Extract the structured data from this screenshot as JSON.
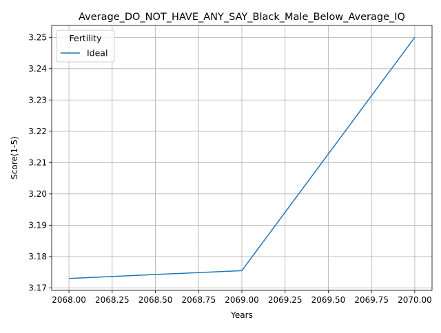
{
  "chart_data": {
    "type": "line",
    "title": "Average_DO_NOT_HAVE_ANY_SAY_Black_Male_Below_Average_IQ",
    "xlabel": "Years",
    "ylabel": "Score(1-5)",
    "xlim": [
      2067.9,
      2070.1
    ],
    "ylim": [
      3.1692,
      3.2538
    ],
    "x_ticks": [
      2068.0,
      2068.25,
      2068.5,
      2068.75,
      2069.0,
      2069.25,
      2069.5,
      2069.75,
      2070.0
    ],
    "x_tick_labels": [
      "2068.00",
      "2068.25",
      "2068.50",
      "2068.75",
      "2069.00",
      "2069.25",
      "2069.50",
      "2069.75",
      "2070.00"
    ],
    "y_ticks": [
      3.17,
      3.18,
      3.19,
      3.2,
      3.21,
      3.22,
      3.23,
      3.24,
      3.25
    ],
    "y_tick_labels": [
      "3.17",
      "3.18",
      "3.19",
      "3.20",
      "3.21",
      "3.22",
      "3.23",
      "3.24",
      "3.25"
    ],
    "grid": true,
    "legend": {
      "title": "Fertility",
      "placement": "top-left"
    },
    "series": [
      {
        "name": "Ideal",
        "color": "#1f77b4",
        "x": [
          2068,
          2069,
          2070
        ],
        "y": [
          3.173,
          3.1755,
          3.25
        ]
      }
    ]
  }
}
